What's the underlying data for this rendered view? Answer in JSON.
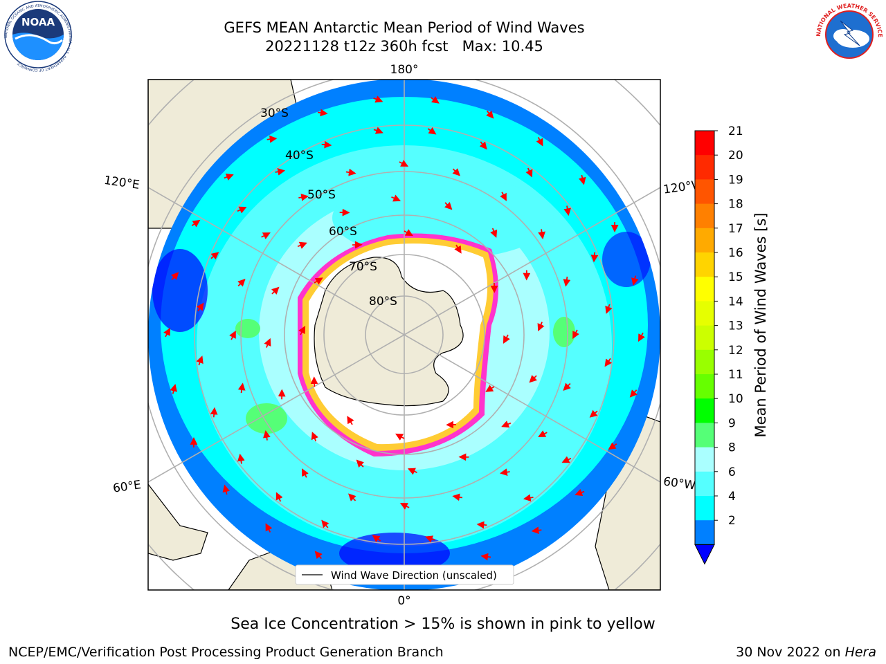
{
  "title": {
    "line1": "GEFS MEAN Antarctic Mean Period of Wind Waves",
    "line2": "20221128 t12z 360h fcst   Max: 10.45"
  },
  "map": {
    "projection": "South Polar Stereographic",
    "longitude_labels": {
      "top": "180°",
      "bottom": "0°",
      "left_upper": "120°E",
      "left_lower": "60°E",
      "right_upper": "120°W",
      "right_lower": "60°W"
    },
    "latitude_labels": [
      "30°S",
      "40°S",
      "50°S",
      "60°S",
      "70°S",
      "80°S"
    ],
    "legend_label": "Wind Wave Direction (unscaled)",
    "land_color": "#efebd8",
    "ice_colors": [
      "#ff33cc",
      "#ffcc33",
      "#ffffff"
    ],
    "arrow_color": "#ff0000"
  },
  "colorbar": {
    "label": "Mean Period of Wind Waves [s]",
    "ticks": [
      "21",
      "20",
      "19",
      "18",
      "17",
      "16",
      "15",
      "14",
      "13",
      "12",
      "11",
      "10",
      "9",
      "8",
      "6",
      "4",
      "2"
    ],
    "colors": [
      "#ff0000",
      "#ff2a00",
      "#ff5500",
      "#ff8000",
      "#ffaa00",
      "#ffd400",
      "#ffff00",
      "#e6ff00",
      "#ccff00",
      "#99ff00",
      "#66ff00",
      "#00ff00",
      "#55ff77",
      "#aaffff",
      "#55ffff",
      "#00ffff",
      "#0080ff"
    ],
    "extend_color": "#0000ff"
  },
  "footer": {
    "subtitle": "Sea Ice Concentration > 15% is shown in pink to yellow",
    "credit": "NCEP/EMC/Verification Post Processing Product Generation Branch",
    "date_prefix": "30 Nov 2022 on ",
    "date_machine": "Hera"
  },
  "logos": {
    "noaa": {
      "text": "NOAA",
      "ring_text": "NATIONAL OCEANIC AND ATMOSPHERIC ADMINISTRATION · U.S. DEPARTMENT OF COMMERCE"
    },
    "nws": {
      "ring_text": "NATIONAL WEATHER SERVICE"
    }
  }
}
